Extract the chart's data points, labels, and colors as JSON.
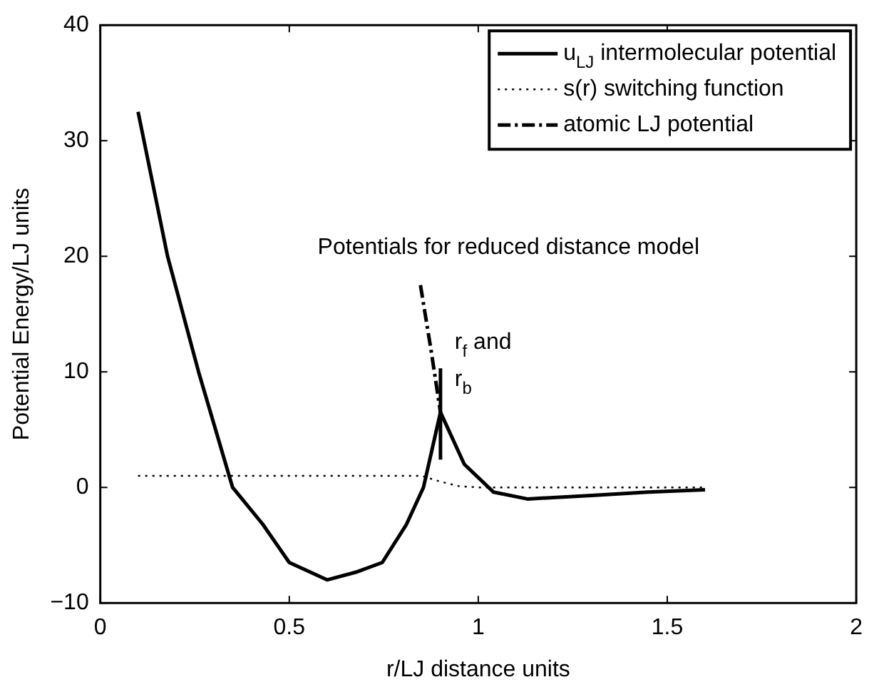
{
  "chart_data": {
    "type": "line",
    "xlabel": "r/LJ distance units",
    "ylabel": "Potential Energy/LJ units",
    "xlim": [
      0,
      2
    ],
    "xticks": [
      0,
      0.5,
      1,
      1.5,
      2
    ],
    "ylim": [
      -10,
      40
    ],
    "yticks": [
      {
        "value": -10,
        "label": "−10"
      },
      0,
      10,
      20,
      30,
      40
    ],
    "grid": false,
    "legend": "top right",
    "marker": "none",
    "annotations": [
      "Potentials for reduced distance model",
      {
        "text": "r$_{f}$ and\nr$_{b}$",
        "x": 0.9,
        "y": 10.3
      }
    ],
    "series": [
      {
        "name": "u$_{LJ}$ intermolecular potential",
        "color": "#000000",
        "line_style": "solid",
        "x": [
          0.1,
          0.178,
          0.26,
          0.35,
          0.43,
          0.5,
          0.6,
          0.68,
          0.746,
          0.81,
          0.855,
          0.9,
          0.963,
          1.04,
          1.13,
          1.3,
          1.45,
          1.6
        ],
        "values": [
          32.5,
          20,
          10,
          0,
          -3.2,
          -6.5,
          -8,
          -7.3,
          -6.5,
          -3.2,
          0,
          6.5,
          2,
          -0.4,
          -1,
          -0.7,
          -0.4,
          -0.2
        ]
      },
      {
        "name": "s(r) switching function",
        "color": "#000000",
        "line_style": "dotted",
        "x": [
          0.1,
          0.85,
          0.9,
          0.95,
          1.0,
          1.6
        ],
        "values": [
          1,
          1,
          0.5,
          0.1,
          0,
          0
        ]
      },
      {
        "name": "atomic LJ potential",
        "color": "#000000",
        "line_style": "dashed",
        "x": [
          0.847,
          0.874,
          0.9
        ],
        "values": [
          17.5,
          12.1,
          6.5
        ]
      },
      {
        "color": "#000000",
        "line_style": "solid",
        "x": [
          0.9,
          0.9
        ],
        "values": [
          2.4,
          10.3
        ]
      }
    ]
  }
}
